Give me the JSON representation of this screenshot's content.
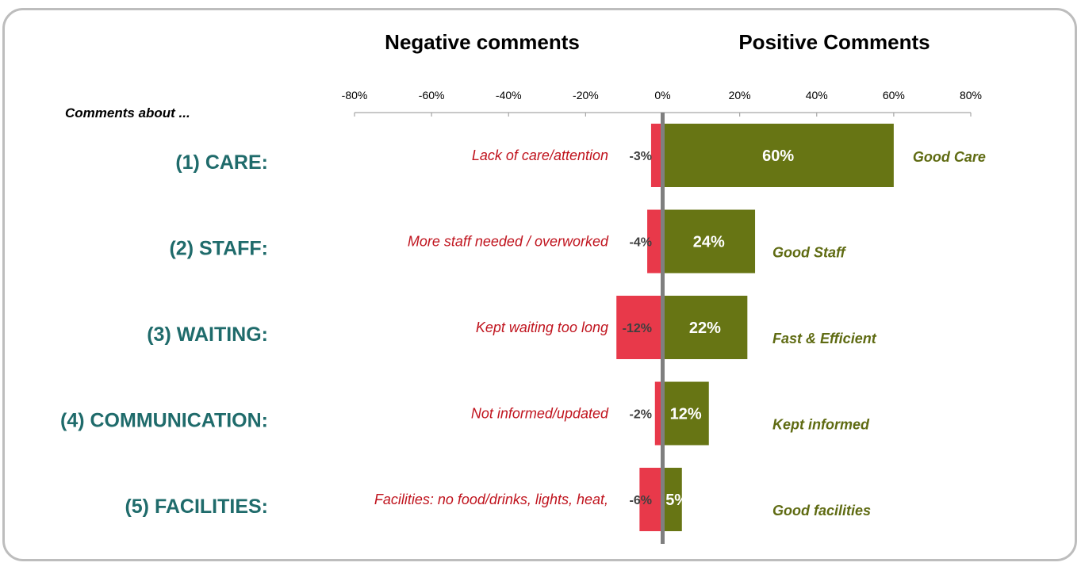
{
  "chart_data": {
    "type": "bar",
    "orientation": "horizontal-diverging",
    "header_negative": "Negative comments",
    "header_positive": "Positive Comments",
    "row_heading": "Comments about ...",
    "xlim": [
      -80,
      80
    ],
    "xticks": [
      -80,
      -60,
      -40,
      -20,
      0,
      20,
      40,
      60,
      80
    ],
    "xtick_labels": [
      "-80%",
      "-60%",
      "-40%",
      "-20%",
      "0%",
      "20%",
      "40%",
      "60%",
      "80%"
    ],
    "categories": [
      "(1) CARE:",
      "(2) STAFF:",
      "(3) WAITING:",
      "(4) COMMUNICATION:",
      "(5) FACILITIES:"
    ],
    "series": [
      {
        "values": [
          -3,
          -4,
          -12,
          -2,
          -6
        ],
        "value_labels": [
          "-3%",
          "-4%",
          "-12%",
          "-2%",
          "-6%"
        ],
        "descriptions": [
          "Lack of care/attention",
          "More staff needed / overworked",
          "Kept waiting too long",
          "Not informed/updated",
          "Facilities: no food/drinks, lights, heat,"
        ]
      },
      {
        "values": [
          60,
          24,
          22,
          12,
          5
        ],
        "value_labels": [
          "60%",
          "24%",
          "22%",
          "12%",
          "5%"
        ],
        "descriptions": [
          "Good Care",
          "Good Staff",
          "Fast & Efficient",
          "Kept informed",
          "Good facilities"
        ]
      }
    ],
    "colors": {
      "negative": "#e8394a",
      "positive": "#677514",
      "category_text": "#1f6b6b",
      "negative_text": "#c0141e",
      "positive_text": "#5f6b12",
      "value_text_negative": "#404040",
      "value_text_positive": "#ffffff",
      "zero_line": "#7f7f7f",
      "axis": "#a6a6a6"
    }
  }
}
